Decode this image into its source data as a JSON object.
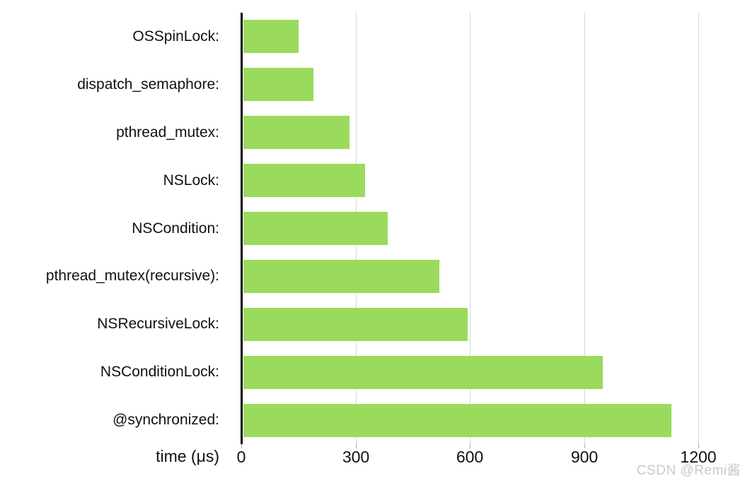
{
  "watermark": "CSDN @Remi酱",
  "colors": {
    "bar": "#9ADB5E",
    "axis_line": "#000000",
    "gridline": "#d6d6d6",
    "text": "#111111",
    "watermark": "#c9c9c9"
  },
  "chart_data": {
    "type": "bar",
    "orientation": "horizontal",
    "title": "",
    "categories": [
      "OSSpinLock:",
      "dispatch_semaphore:",
      "pthread_mutex:",
      "NSLock:",
      "NSCondition:",
      "pthread_mutex(recursive):",
      "NSRecursiveLock:",
      "NSConditionLock:",
      "@synchronized:"
    ],
    "values": [
      150,
      190,
      285,
      325,
      385,
      520,
      595,
      950,
      1130
    ],
    "xlabel": "time (μs)",
    "ylabel": "",
    "xlim": [
      0,
      1200
    ],
    "xticks": [
      0,
      300,
      600,
      900,
      1200
    ],
    "grid": true,
    "legend": false
  }
}
